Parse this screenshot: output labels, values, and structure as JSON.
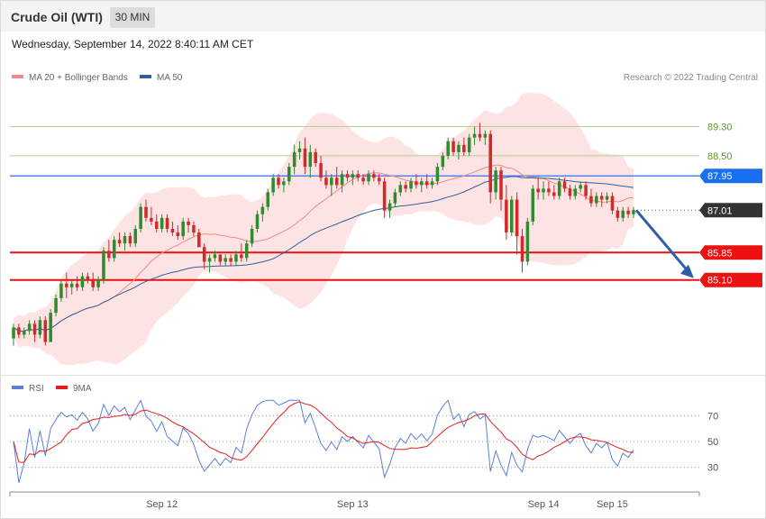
{
  "header": {
    "title": "Crude Oil (WTI)",
    "timeframe": "30 MIN"
  },
  "datetime": "Wednesday, September 14, 2022 8:40:11 AM CET",
  "legend_main": [
    {
      "label": "MA 20 + Bollinger Bands",
      "color": "#f28b82"
    },
    {
      "label": "MA 50",
      "color": "#2f5f9e"
    }
  ],
  "credit": "Research © 2022 Trading Central",
  "legend_rsi": [
    {
      "label": "RSI",
      "color": "#5b7fd6"
    },
    {
      "label": "9MA",
      "color": "#e02020"
    }
  ],
  "chart_data": [
    {
      "type": "candlestick",
      "title": "Crude Oil (WTI)",
      "ylim": [
        82.6,
        90.3
      ],
      "x_ticks": [
        {
          "label": "Sep 12",
          "index": 28
        },
        {
          "label": "Sep 13",
          "index": 64
        },
        {
          "label": "Sep 14",
          "index": 100
        },
        {
          "label": "Sep 15",
          "index": 113
        }
      ],
      "levels": [
        {
          "value": 89.3,
          "label": "89.30",
          "color": "#b5cf8f",
          "kind": "green"
        },
        {
          "value": 88.5,
          "label": "88.50",
          "color": "#b5cf8f",
          "kind": "green"
        },
        {
          "value": 87.95,
          "label": "87.95",
          "color": "#4f86f0",
          "kind": "blue"
        },
        {
          "value": 87.01,
          "label": "87.01",
          "color": "#333333",
          "kind": "last"
        },
        {
          "value": 85.85,
          "label": "85.85",
          "color": "#e81010",
          "kind": "red"
        },
        {
          "value": 85.1,
          "label": "85.10",
          "color": "#e81010",
          "kind": "red"
        }
      ],
      "last_price": 87.01,
      "arrow_target": 85.1,
      "candles": [
        [
          83.5,
          83.9,
          83.3,
          83.8
        ],
        [
          83.8,
          83.9,
          83.5,
          83.6
        ],
        [
          83.6,
          83.8,
          83.5,
          83.7
        ],
        [
          83.7,
          84.0,
          83.6,
          83.9
        ],
        [
          83.9,
          84.0,
          83.4,
          83.6
        ],
        [
          83.6,
          84.1,
          83.5,
          84.0
        ],
        [
          84.0,
          84.1,
          83.3,
          83.4
        ],
        [
          83.4,
          84.3,
          83.4,
          84.2
        ],
        [
          84.2,
          84.7,
          84.1,
          84.6
        ],
        [
          84.6,
          85.1,
          84.5,
          85.0
        ],
        [
          85.0,
          85.3,
          84.6,
          84.9
        ],
        [
          84.9,
          85.1,
          84.7,
          85.0
        ],
        [
          85.0,
          85.2,
          84.8,
          84.9
        ],
        [
          84.9,
          85.3,
          84.8,
          85.2
        ],
        [
          85.2,
          85.3,
          85.0,
          85.1
        ],
        [
          85.1,
          85.3,
          84.8,
          84.9
        ],
        [
          84.9,
          85.2,
          84.8,
          85.1
        ],
        [
          85.1,
          86.0,
          85.0,
          85.9
        ],
        [
          85.9,
          86.2,
          85.6,
          85.7
        ],
        [
          85.7,
          86.3,
          85.6,
          86.2
        ],
        [
          86.2,
          86.4,
          86.0,
          86.1
        ],
        [
          86.1,
          86.4,
          85.9,
          86.3
        ],
        [
          86.3,
          86.4,
          86.0,
          86.1
        ],
        [
          86.1,
          86.6,
          86.0,
          86.5
        ],
        [
          86.5,
          87.2,
          86.4,
          87.1
        ],
        [
          87.1,
          87.3,
          86.7,
          86.8
        ],
        [
          86.8,
          87.1,
          86.6,
          86.7
        ],
        [
          86.7,
          86.9,
          86.4,
          86.5
        ],
        [
          86.5,
          86.9,
          86.4,
          86.8
        ],
        [
          86.8,
          86.9,
          86.4,
          86.5
        ],
        [
          86.5,
          86.7,
          86.3,
          86.4
        ],
        [
          86.4,
          86.6,
          86.2,
          86.3
        ],
        [
          86.3,
          86.8,
          86.2,
          86.7
        ],
        [
          86.7,
          86.8,
          86.4,
          86.6
        ],
        [
          86.6,
          86.7,
          86.3,
          86.4
        ],
        [
          86.4,
          86.5,
          86.0,
          86.0
        ],
        [
          86.0,
          86.1,
          85.4,
          85.6
        ],
        [
          85.6,
          85.8,
          85.3,
          85.7
        ],
        [
          85.7,
          85.9,
          85.6,
          85.8
        ],
        [
          85.8,
          85.8,
          85.5,
          85.6
        ],
        [
          85.6,
          85.8,
          85.5,
          85.7
        ],
        [
          85.7,
          85.8,
          85.5,
          85.6
        ],
        [
          85.6,
          85.9,
          85.5,
          85.8
        ],
        [
          85.8,
          86.1,
          85.6,
          85.7
        ],
        [
          85.7,
          86.2,
          85.6,
          86.1
        ],
        [
          86.1,
          86.6,
          86.0,
          86.5
        ],
        [
          86.5,
          87.0,
          86.4,
          86.9
        ],
        [
          86.9,
          87.2,
          86.7,
          87.1
        ],
        [
          87.1,
          87.6,
          87.0,
          87.5
        ],
        [
          87.5,
          88.0,
          87.4,
          87.9
        ],
        [
          87.9,
          88.0,
          87.6,
          87.7
        ],
        [
          87.7,
          87.9,
          87.5,
          87.8
        ],
        [
          87.8,
          88.3,
          87.7,
          88.2
        ],
        [
          88.2,
          88.8,
          88.0,
          88.6
        ],
        [
          88.6,
          88.9,
          88.4,
          88.7
        ],
        [
          88.7,
          89.0,
          88.0,
          88.2
        ],
        [
          88.2,
          88.8,
          87.9,
          88.6
        ],
        [
          88.6,
          88.7,
          88.2,
          88.3
        ],
        [
          88.3,
          88.5,
          87.8,
          87.9
        ],
        [
          87.9,
          88.1,
          87.6,
          87.7
        ],
        [
          87.7,
          88.0,
          87.4,
          87.9
        ],
        [
          87.9,
          88.2,
          87.6,
          87.7
        ],
        [
          87.7,
          88.1,
          87.5,
          88.0
        ],
        [
          88.0,
          88.1,
          87.8,
          87.9
        ],
        [
          87.9,
          88.1,
          87.7,
          88.0
        ],
        [
          88.0,
          88.1,
          87.8,
          87.9
        ],
        [
          87.9,
          88.0,
          87.7,
          87.8
        ],
        [
          87.8,
          88.1,
          87.7,
          88.0
        ],
        [
          88.0,
          88.1,
          87.8,
          87.9
        ],
        [
          87.9,
          88.0,
          87.7,
          87.8
        ],
        [
          87.8,
          87.9,
          86.8,
          87.0
        ],
        [
          87.0,
          87.3,
          86.8,
          87.2
        ],
        [
          87.2,
          87.6,
          87.1,
          87.5
        ],
        [
          87.5,
          87.8,
          87.4,
          87.7
        ],
        [
          87.7,
          87.8,
          87.5,
          87.6
        ],
        [
          87.6,
          87.9,
          87.5,
          87.8
        ],
        [
          87.8,
          88.0,
          87.6,
          87.7
        ],
        [
          87.7,
          87.9,
          87.5,
          87.8
        ],
        [
          87.8,
          88.0,
          87.6,
          87.7
        ],
        [
          87.7,
          87.9,
          87.6,
          87.8
        ],
        [
          87.8,
          88.3,
          87.7,
          88.2
        ],
        [
          88.2,
          88.6,
          88.1,
          88.5
        ],
        [
          88.5,
          89.0,
          88.4,
          88.9
        ],
        [
          88.9,
          89.0,
          88.5,
          88.6
        ],
        [
          88.6,
          88.9,
          88.4,
          88.8
        ],
        [
          88.8,
          89.0,
          88.5,
          88.6
        ],
        [
          88.6,
          89.1,
          88.5,
          89.0
        ],
        [
          89.0,
          89.3,
          88.8,
          89.1
        ],
        [
          89.1,
          89.4,
          88.9,
          89.0
        ],
        [
          89.0,
          89.2,
          88.8,
          89.1
        ],
        [
          89.1,
          89.2,
          87.2,
          87.5
        ],
        [
          87.5,
          88.2,
          87.3,
          88.1
        ],
        [
          88.1,
          88.2,
          87.0,
          87.3
        ],
        [
          87.3,
          87.7,
          86.2,
          86.4
        ],
        [
          86.4,
          87.4,
          86.3,
          87.3
        ],
        [
          87.3,
          87.5,
          85.8,
          86.3
        ],
        [
          86.3,
          86.5,
          85.3,
          85.6
        ],
        [
          85.6,
          86.8,
          85.5,
          86.7
        ],
        [
          86.7,
          87.7,
          86.6,
          87.6
        ],
        [
          87.6,
          87.9,
          87.3,
          87.5
        ],
        [
          87.5,
          87.8,
          87.3,
          87.6
        ],
        [
          87.6,
          87.8,
          87.4,
          87.5
        ],
        [
          87.5,
          87.7,
          87.3,
          87.4
        ],
        [
          87.4,
          87.9,
          87.3,
          87.8
        ],
        [
          87.8,
          87.9,
          87.5,
          87.6
        ],
        [
          87.6,
          87.7,
          87.3,
          87.4
        ],
        [
          87.4,
          87.7,
          87.3,
          87.6
        ],
        [
          87.6,
          87.8,
          87.5,
          87.7
        ],
        [
          87.7,
          87.8,
          87.3,
          87.4
        ],
        [
          87.4,
          87.6,
          87.1,
          87.2
        ],
        [
          87.2,
          87.5,
          87.1,
          87.4
        ],
        [
          87.4,
          87.5,
          87.1,
          87.3
        ],
        [
          87.3,
          87.5,
          87.2,
          87.4
        ],
        [
          87.4,
          87.5,
          86.9,
          87.0
        ],
        [
          87.0,
          87.1,
          86.7,
          86.8
        ],
        [
          86.8,
          87.1,
          86.7,
          87.0
        ],
        [
          87.0,
          87.1,
          86.8,
          86.9
        ],
        [
          86.9,
          87.1,
          86.8,
          87.01
        ]
      ]
    },
    {
      "type": "line",
      "series": [
        {
          "name": "RSI",
          "color": "#5b7fd6"
        },
        {
          "name": "9MA",
          "color": "#e02020"
        }
      ],
      "ylim": [
        15,
        85
      ],
      "y_ticks": [
        30,
        50,
        70
      ]
    }
  ]
}
